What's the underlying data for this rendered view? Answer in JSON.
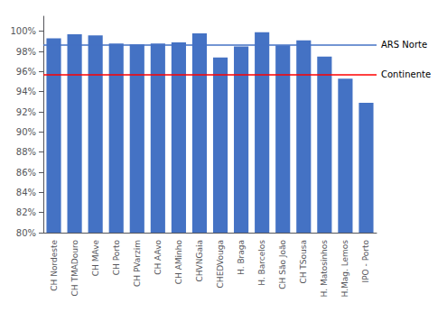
{
  "chart_data": {
    "type": "bar",
    "categories": [
      "CH Nordeste",
      "CH TMADouro",
      "CH MAve",
      "CH Porto",
      "CH PVarzim",
      "CH AAvo",
      "CH AMinho",
      "CHVNGaia",
      "CHEDVouga",
      "H. Braga",
      "H. Barcelos",
      "CH São João",
      "CH TSousa",
      "H. Matosinhos",
      "H.Mag. Lemos",
      "IPO - Porto"
    ],
    "values": [
      99.3,
      99.7,
      99.6,
      98.8,
      98.7,
      98.8,
      98.9,
      99.8,
      97.4,
      98.5,
      99.9,
      98.6,
      99.1,
      97.5,
      95.3,
      92.9
    ],
    "color": "#4472C4",
    "lines": [
      {
        "label": "ARS Norte",
        "value": 98.7,
        "color": "#4472C4"
      },
      {
        "label": "Continente",
        "value": 95.7,
        "color": "#FF0000"
      }
    ],
    "ylim": [
      80,
      101.5
    ],
    "yticks": [
      {
        "value": 80,
        "label": "80%"
      },
      {
        "value": 82,
        "label": "82%"
      },
      {
        "value": 84,
        "label": "84%"
      },
      {
        "value": 86,
        "label": "86%"
      },
      {
        "value": 88,
        "label": "88%"
      },
      {
        "value": 90,
        "label": "90%"
      },
      {
        "value": 92,
        "label": "92%"
      },
      {
        "value": 94,
        "label": "94%"
      },
      {
        "value": 96,
        "label": "96%"
      },
      {
        "value": 98,
        "label": "98%"
      },
      {
        "value": 100,
        "label": "100%"
      }
    ],
    "grid": false
  }
}
